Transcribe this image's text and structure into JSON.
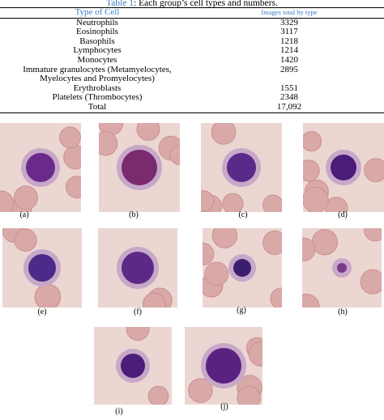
{
  "table": {
    "caption_ref": "Table 1",
    "caption_text": ": Each group’s cell types and numbers.",
    "header": [
      "Type of Cell",
      "Images total by type"
    ],
    "rows": [
      [
        "Neutrophils",
        "3329"
      ],
      [
        "Eosinophils",
        "3117"
      ],
      [
        "Basophils",
        "1218"
      ],
      [
        "Lymphocytes",
        "1214"
      ],
      [
        "Monocytes",
        "1420"
      ],
      [
        "Immature granulocytes (Metamyelocytes,\nMyelocytes and Promyelocytes)",
        "2895"
      ],
      [
        "Erythroblasts",
        "1551"
      ],
      [
        "Platelets (Thrombocytes)",
        "2348"
      ],
      [
        "Total",
        "17,092"
      ]
    ]
  },
  "figure": {
    "panels": [
      "(a)",
      "(b)",
      "(c)",
      "(d)",
      "(e)",
      "(f)",
      "(g)",
      "(h)",
      "(i)",
      "(j)"
    ]
  }
}
